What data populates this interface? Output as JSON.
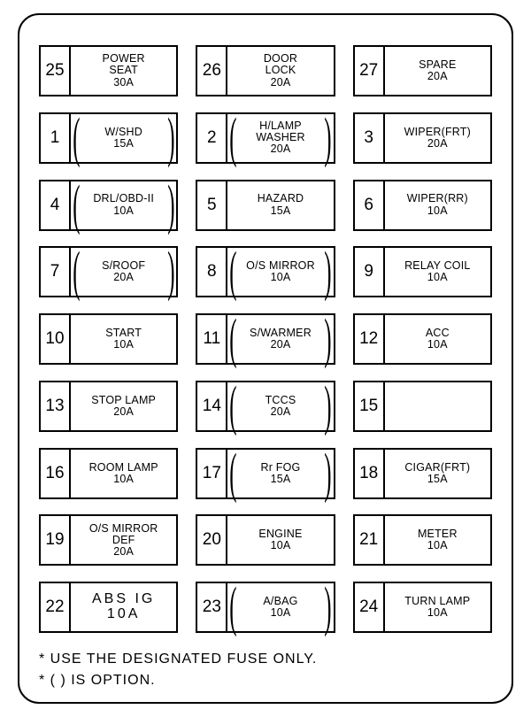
{
  "layout": {
    "cols": 3,
    "rows": 9
  },
  "colors": {
    "border": "#000000",
    "background": "#ffffff",
    "text": "#000000"
  },
  "fuses": [
    {
      "num": "25",
      "lines": [
        "POWER",
        "SEAT",
        "30A"
      ],
      "option": false
    },
    {
      "num": "26",
      "lines": [
        "DOOR",
        "LOCK",
        "20A"
      ],
      "option": false
    },
    {
      "num": "27",
      "lines": [
        "SPARE",
        "20A"
      ],
      "option": false
    },
    {
      "num": "1",
      "lines": [
        "W/SHD",
        "15A"
      ],
      "option": true
    },
    {
      "num": "2",
      "lines": [
        "H/LAMP",
        "WASHER",
        "20A"
      ],
      "option": true
    },
    {
      "num": "3",
      "lines": [
        "WIPER(FRT)",
        "20A"
      ],
      "option": false
    },
    {
      "num": "4",
      "lines": [
        "DRL/OBD-II",
        "10A"
      ],
      "option": true
    },
    {
      "num": "5",
      "lines": [
        "HAZARD",
        "15A"
      ],
      "option": false
    },
    {
      "num": "6",
      "lines": [
        "WIPER(RR)",
        "10A"
      ],
      "option": false
    },
    {
      "num": "7",
      "lines": [
        "S/ROOF",
        "20A"
      ],
      "option": true
    },
    {
      "num": "8",
      "lines": [
        "O/S MIRROR",
        "10A"
      ],
      "option": true
    },
    {
      "num": "9",
      "lines": [
        "RELAY COIL",
        "10A"
      ],
      "option": false
    },
    {
      "num": "10",
      "lines": [
        "START",
        "10A"
      ],
      "option": false
    },
    {
      "num": "11",
      "lines": [
        "S/WARMER",
        "20A"
      ],
      "option": true
    },
    {
      "num": "12",
      "lines": [
        "ACC",
        "10A"
      ],
      "option": false
    },
    {
      "num": "13",
      "lines": [
        "STOP LAMP",
        "20A"
      ],
      "option": false
    },
    {
      "num": "14",
      "lines": [
        "TCCS",
        "20A"
      ],
      "option": true
    },
    {
      "num": "15",
      "lines": [],
      "option": false
    },
    {
      "num": "16",
      "lines": [
        "ROOM LAMP",
        "10A"
      ],
      "option": false
    },
    {
      "num": "17",
      "lines": [
        "Rr FOG",
        "15A"
      ],
      "option": true
    },
    {
      "num": "18",
      "lines": [
        "CIGAR(FRT)",
        "15A"
      ],
      "option": false
    },
    {
      "num": "19",
      "lines": [
        "O/S MIRROR",
        "DEF",
        "20A"
      ],
      "option": false
    },
    {
      "num": "20",
      "lines": [
        "ENGINE",
        "10A"
      ],
      "option": false
    },
    {
      "num": "21",
      "lines": [
        "METER",
        "10A"
      ],
      "option": false
    },
    {
      "num": "22",
      "lines": [
        "ABS IG",
        "10A"
      ],
      "option": false,
      "wide": true
    },
    {
      "num": "23",
      "lines": [
        "A/BAG",
        "10A"
      ],
      "option": true
    },
    {
      "num": "24",
      "lines": [
        "TURN LAMP",
        "10A"
      ],
      "option": false
    }
  ],
  "footer": {
    "note1": "* USE THE DESIGNATED FUSE ONLY.",
    "note2": "* ( ) IS OPTION."
  }
}
